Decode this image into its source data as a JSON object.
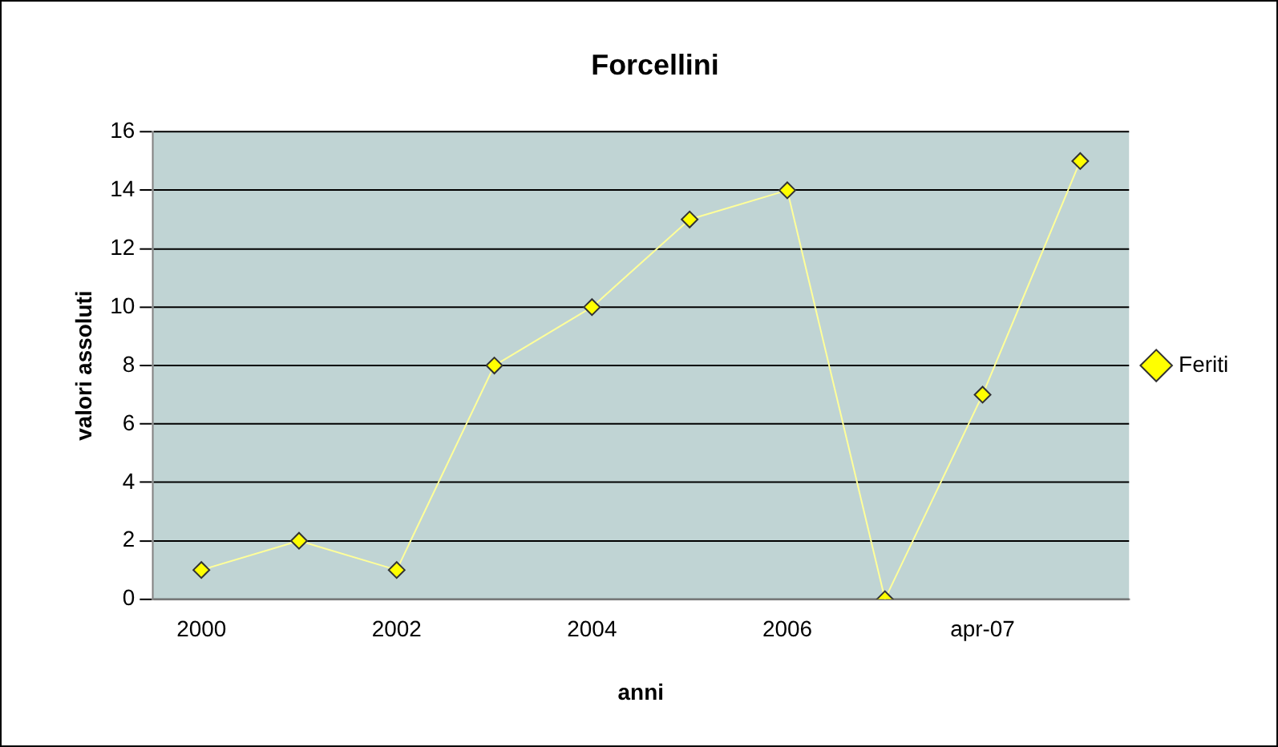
{
  "chart_data": {
    "type": "line",
    "title": "Forcellini",
    "xlabel": "anni",
    "ylabel": "valori assoluti",
    "categories": [
      "2000",
      null,
      "2002",
      null,
      "2004",
      null,
      "2006",
      null,
      "apr-07",
      null
    ],
    "series": [
      {
        "name": "Feriti",
        "color": "#ffff00",
        "values": [
          1,
          2,
          1,
          8,
          10,
          13,
          14,
          0,
          7,
          15
        ]
      }
    ],
    "ylim": [
      0,
      16
    ],
    "yticks": [
      0,
      2,
      4,
      6,
      8,
      10,
      12,
      14,
      16
    ],
    "grid": "y",
    "legend": "right",
    "marker": "diamond",
    "line_style": "solid"
  }
}
